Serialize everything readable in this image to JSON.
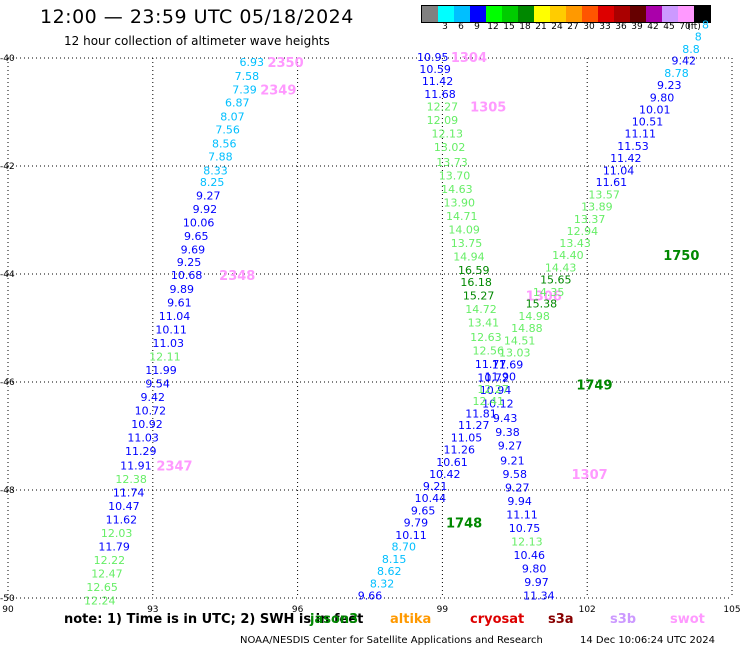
{
  "header": {
    "title": "12:00 — 23:59 UTC 05/18/2024",
    "subtitle": "12 hour collection of altimeter wave heights"
  },
  "colorbar": {
    "unit": "(ft)",
    "bins": [
      {
        "label": "",
        "color": "#808080"
      },
      {
        "label": "3",
        "color": "#00ffff"
      },
      {
        "label": "6",
        "color": "#00bfff"
      },
      {
        "label": "9",
        "color": "#0000ff"
      },
      {
        "label": "12",
        "color": "#00ff00"
      },
      {
        "label": "15",
        "color": "#00cc00"
      },
      {
        "label": "18",
        "color": "#008800"
      },
      {
        "label": "21",
        "color": "#ffff00"
      },
      {
        "label": "24",
        "color": "#ffcc00"
      },
      {
        "label": "27",
        "color": "#ff9900"
      },
      {
        "label": "30",
        "color": "#ff5500"
      },
      {
        "label": "33",
        "color": "#dd0000"
      },
      {
        "label": "36",
        "color": "#aa0000"
      },
      {
        "label": "39",
        "color": "#660000"
      },
      {
        "label": "42",
        "color": "#aa00aa"
      },
      {
        "label": "45",
        "color": "#cc99ff"
      },
      {
        "label": "70",
        "color": "#ff99ff"
      },
      {
        "label": "",
        "color": "#000000"
      }
    ]
  },
  "axes": {
    "lon_ticks": [
      "90",
      "93",
      "96",
      "99",
      "102",
      "105"
    ],
    "lat_ticks": [
      "-40",
      "-42",
      "-44",
      "-46",
      "-48",
      "-50"
    ]
  },
  "tracks": [
    {
      "id": "2347-2350",
      "pass_labels": [
        {
          "text": "2350",
          "lat": -40.07,
          "lon": 95.75
        },
        {
          "text": "2349",
          "lat": -40.58,
          "lon": 95.6
        },
        {
          "text": "2348",
          "lat": -44.02,
          "lon": 94.75
        },
        {
          "text": "2347",
          "lat": -47.55,
          "lon": 93.45
        }
      ],
      "points": [
        {
          "v": "6.93",
          "c": "#00bfff",
          "lat": -40.07,
          "lon": 95.05
        },
        {
          "v": "7.58",
          "c": "#00bfff",
          "lat": -40.33,
          "lon": 94.95
        },
        {
          "v": "7.39",
          "c": "#00bfff",
          "lat": -40.58,
          "lon": 94.9
        },
        {
          "v": "6.87",
          "c": "#00bfff",
          "lat": -40.82,
          "lon": 94.75
        },
        {
          "v": "8.07",
          "c": "#00bfff",
          "lat": -41.08,
          "lon": 94.65
        },
        {
          "v": "7.56",
          "c": "#00bfff",
          "lat": -41.32,
          "lon": 94.55
        },
        {
          "v": "8.56",
          "c": "#00bfff",
          "lat": -41.58,
          "lon": 94.48
        },
        {
          "v": "7.88",
          "c": "#00bfff",
          "lat": -41.82,
          "lon": 94.4
        },
        {
          "v": "8.33",
          "c": "#00bfff",
          "lat": -42.08,
          "lon": 94.3
        },
        {
          "v": "8.25",
          "c": "#00bfff",
          "lat": -42.3,
          "lon": 94.23
        },
        {
          "v": "9.27",
          "c": "#0000ff",
          "lat": -42.55,
          "lon": 94.15
        },
        {
          "v": "9.92",
          "c": "#0000ff",
          "lat": -42.8,
          "lon": 94.08
        },
        {
          "v": "10.06",
          "c": "#0000ff",
          "lat": -43.05,
          "lon": 93.95
        },
        {
          "v": "9.65",
          "c": "#0000ff",
          "lat": -43.3,
          "lon": 93.9
        },
        {
          "v": "9.69",
          "c": "#0000ff",
          "lat": -43.55,
          "lon": 93.83
        },
        {
          "v": "9.25",
          "c": "#0000ff",
          "lat": -43.78,
          "lon": 93.75
        },
        {
          "v": "10.68",
          "c": "#0000ff",
          "lat": -44.02,
          "lon": 93.7
        },
        {
          "v": "9.89",
          "c": "#0000ff",
          "lat": -44.28,
          "lon": 93.6
        },
        {
          "v": "9.61",
          "c": "#0000ff",
          "lat": -44.53,
          "lon": 93.55
        },
        {
          "v": "11.04",
          "c": "#0000ff",
          "lat": -44.78,
          "lon": 93.45
        },
        {
          "v": "10.11",
          "c": "#0000ff",
          "lat": -45.03,
          "lon": 93.38
        },
        {
          "v": "11.03",
          "c": "#0000ff",
          "lat": -45.28,
          "lon": 93.32
        },
        {
          "v": "12.11",
          "c": "#66ee66",
          "lat": -45.53,
          "lon": 93.25
        },
        {
          "v": "11.99",
          "c": "#0000ff",
          "lat": -45.78,
          "lon": 93.17
        },
        {
          "v": "9.54",
          "c": "#0000ff",
          "lat": -46.03,
          "lon": 93.1
        },
        {
          "v": "9.42",
          "c": "#0000ff",
          "lat": -46.28,
          "lon": 93.0
        },
        {
          "v": "10.72",
          "c": "#0000ff",
          "lat": -46.53,
          "lon": 92.95
        },
        {
          "v": "10.92",
          "c": "#0000ff",
          "lat": -46.78,
          "lon": 92.88
        },
        {
          "v": "11.03",
          "c": "#0000ff",
          "lat": -47.03,
          "lon": 92.8
        },
        {
          "v": "11.29",
          "c": "#0000ff",
          "lat": -47.28,
          "lon": 92.75
        },
        {
          "v": "11.91",
          "c": "#0000ff",
          "lat": -47.55,
          "lon": 92.65
        },
        {
          "v": "12.38",
          "c": "#66ee66",
          "lat": -47.8,
          "lon": 92.55
        },
        {
          "v": "11.74",
          "c": "#0000ff",
          "lat": -48.05,
          "lon": 92.5
        },
        {
          "v": "10.47",
          "c": "#0000ff",
          "lat": -48.3,
          "lon": 92.4
        },
        {
          "v": "11.62",
          "c": "#0000ff",
          "lat": -48.55,
          "lon": 92.35
        },
        {
          "v": "12.03",
          "c": "#66ee66",
          "lat": -48.8,
          "lon": 92.25
        },
        {
          "v": "11.79",
          "c": "#0000ff",
          "lat": -49.05,
          "lon": 92.2
        },
        {
          "v": "12.22",
          "c": "#66ee66",
          "lat": -49.3,
          "lon": 92.1
        },
        {
          "v": "12.47",
          "c": "#66ee66",
          "lat": -49.55,
          "lon": 92.05
        },
        {
          "v": "12.65",
          "c": "#66ee66",
          "lat": -49.8,
          "lon": 91.95
        },
        {
          "v": "12.24",
          "c": "#66ee66",
          "lat": -50.05,
          "lon": 91.9
        }
      ]
    },
    {
      "id": "1304-1307",
      "pass_labels": [
        {
          "text": "1304",
          "lat": -39.98,
          "lon": 99.55
        },
        {
          "text": "1305",
          "lat": -40.9,
          "lon": 99.95
        },
        {
          "text": "1306",
          "lat": -44.4,
          "lon": 101.1
        },
        {
          "text": "1307",
          "lat": -47.7,
          "lon": 102.05
        }
      ],
      "points": [
        {
          "v": "10.95",
          "c": "#0000ff",
          "lat": -39.98,
          "lon": 98.8
        },
        {
          "v": "10.59",
          "c": "#0000ff",
          "lat": -40.2,
          "lon": 98.85
        },
        {
          "v": "11.42",
          "c": "#0000ff",
          "lat": -40.43,
          "lon": 98.9
        },
        {
          "v": "11.68",
          "c": "#0000ff",
          "lat": -40.67,
          "lon": 98.95
        },
        {
          "v": "12.27",
          "c": "#66ee66",
          "lat": -40.9,
          "lon": 99.0
        },
        {
          "v": "12.09",
          "c": "#66ee66",
          "lat": -41.15,
          "lon": 99.0
        },
        {
          "v": "12.13",
          "c": "#66ee66",
          "lat": -41.4,
          "lon": 99.1
        },
        {
          "v": "13.02",
          "c": "#66ee66",
          "lat": -41.65,
          "lon": 99.15
        },
        {
          "v": "13.73",
          "c": "#66ee66",
          "lat": -41.93,
          "lon": 99.2
        },
        {
          "v": "13.70",
          "c": "#66ee66",
          "lat": -42.18,
          "lon": 99.25
        },
        {
          "v": "14.63",
          "c": "#66ee66",
          "lat": -42.43,
          "lon": 99.3
        },
        {
          "v": "13.90",
          "c": "#66ee66",
          "lat": -42.68,
          "lon": 99.35
        },
        {
          "v": "14.71",
          "c": "#66ee66",
          "lat": -42.93,
          "lon": 99.4
        },
        {
          "v": "14.09",
          "c": "#66ee66",
          "lat": -43.18,
          "lon": 99.45
        },
        {
          "v": "13.75",
          "c": "#66ee66",
          "lat": -43.43,
          "lon": 99.5
        },
        {
          "v": "14.94",
          "c": "#66ee66",
          "lat": -43.68,
          "lon": 99.55
        },
        {
          "v": "16.59",
          "c": "#008800",
          "lat": -43.93,
          "lon": 99.65
        },
        {
          "v": "16.18",
          "c": "#008800",
          "lat": -44.15,
          "lon": 99.7
        },
        {
          "v": "15.27",
          "c": "#008800",
          "lat": -44.4,
          "lon": 99.75
        },
        {
          "v": "14.72",
          "c": "#66ee66",
          "lat": -44.65,
          "lon": 99.8
        },
        {
          "v": "13.41",
          "c": "#66ee66",
          "lat": -44.9,
          "lon": 99.85
        },
        {
          "v": "12.63",
          "c": "#66ee66",
          "lat": -45.17,
          "lon": 99.9
        },
        {
          "v": "12.56",
          "c": "#66ee66",
          "lat": -45.42,
          "lon": 99.95
        },
        {
          "v": "11.77",
          "c": "#0000ff",
          "lat": -45.67,
          "lon": 100.0
        },
        {
          "v": "10.72",
          "c": "#0000ff",
          "lat": -45.92,
          "lon": 100.05
        },
        {
          "v": "10.94",
          "c": "#0000ff",
          "lat": -46.15,
          "lon": 100.1
        },
        {
          "v": "10.12",
          "c": "#0000ff",
          "lat": -46.4,
          "lon": 100.15
        },
        {
          "v": "9.43",
          "c": "#0000ff",
          "lat": -46.67,
          "lon": 100.3
        },
        {
          "v": "9.38",
          "c": "#0000ff",
          "lat": -46.93,
          "lon": 100.35
        },
        {
          "v": "9.27",
          "c": "#0000ff",
          "lat": -47.18,
          "lon": 100.4
        },
        {
          "v": "9.21",
          "c": "#0000ff",
          "lat": -47.45,
          "lon": 100.45
        },
        {
          "v": "9.58",
          "c": "#0000ff",
          "lat": -47.7,
          "lon": 100.5
        },
        {
          "v": "9.27",
          "c": "#0000ff",
          "lat": -47.95,
          "lon": 100.55
        },
        {
          "v": "9.94",
          "c": "#0000ff",
          "lat": -48.2,
          "lon": 100.6
        },
        {
          "v": "11.11",
          "c": "#0000ff",
          "lat": -48.45,
          "lon": 100.65
        },
        {
          "v": "10.75",
          "c": "#0000ff",
          "lat": -48.7,
          "lon": 100.7
        },
        {
          "v": "12.13",
          "c": "#66ee66",
          "lat": -48.95,
          "lon": 100.75
        },
        {
          "v": "10.46",
          "c": "#0000ff",
          "lat": -49.2,
          "lon": 100.8
        },
        {
          "v": "9.80",
          "c": "#0000ff",
          "lat": -49.45,
          "lon": 100.9
        },
        {
          "v": "9.97",
          "c": "#0000ff",
          "lat": -49.7,
          "lon": 100.95
        },
        {
          "v": "11.34",
          "c": "#0000ff",
          "lat": -49.95,
          "lon": 101.0
        }
      ]
    },
    {
      "id": "1748-1750",
      "pass_labels": [
        {
          "text": "1750",
          "lat": -43.65,
          "lon": 103.95
        },
        {
          "text": "1749",
          "lat": -46.05,
          "lon": 102.15
        },
        {
          "text": "1748",
          "lat": -48.6,
          "lon": 99.45
        }
      ],
      "points": [
        {
          "v": "9.66",
          "c": "#0000ff",
          "lat": -49.95,
          "lon": 97.5
        },
        {
          "v": "8.32",
          "c": "#00bfff",
          "lat": -49.73,
          "lon": 97.75
        },
        {
          "v": "8.62",
          "c": "#00bfff",
          "lat": -49.5,
          "lon": 97.9
        },
        {
          "v": "8.15",
          "c": "#00bfff",
          "lat": -49.28,
          "lon": 98.0
        },
        {
          "v": "8.70",
          "c": "#00bfff",
          "lat": -49.05,
          "lon": 98.2
        },
        {
          "v": "10.11",
          "c": "#0000ff",
          "lat": -48.83,
          "lon": 98.35
        },
        {
          "v": "9.79",
          "c": "#0000ff",
          "lat": -48.6,
          "lon": 98.45
        },
        {
          "v": "9.65",
          "c": "#0000ff",
          "lat": -48.38,
          "lon": 98.6
        },
        {
          "v": "10.44",
          "c": "#0000ff",
          "lat": -48.15,
          "lon": 98.75
        },
        {
          "v": "9.21",
          "c": "#0000ff",
          "lat": -47.93,
          "lon": 98.85
        },
        {
          "v": "10.42",
          "c": "#0000ff",
          "lat": -47.7,
          "lon": 99.05
        },
        {
          "v": "10.61",
          "c": "#0000ff",
          "lat": -47.48,
          "lon": 99.2
        },
        {
          "v": "11.26",
          "c": "#0000ff",
          "lat": -47.25,
          "lon": 99.35
        },
        {
          "v": "11.05",
          "c": "#0000ff",
          "lat": -47.03,
          "lon": 99.5
        },
        {
          "v": "11.27",
          "c": "#0000ff",
          "lat": -46.8,
          "lon": 99.65
        },
        {
          "v": "11.81",
          "c": "#0000ff",
          "lat": -46.58,
          "lon": 99.8
        },
        {
          "v": "12.41",
          "c": "#66ee66",
          "lat": -46.35,
          "lon": 99.95
        },
        {
          "v": "12.27",
          "c": "#66ee66",
          "lat": -46.13,
          "lon": 100.05
        },
        {
          "v": "11.90",
          "c": "#0000ff",
          "lat": -45.9,
          "lon": 100.2
        },
        {
          "v": "11.69",
          "c": "#0000ff",
          "lat": -45.68,
          "lon": 100.35
        },
        {
          "v": "13.03",
          "c": "#66ee66",
          "lat": -45.45,
          "lon": 100.5
        },
        {
          "v": "14.51",
          "c": "#66ee66",
          "lat": -45.23,
          "lon": 100.6
        },
        {
          "v": "14.88",
          "c": "#66ee66",
          "lat": -45.0,
          "lon": 100.75
        },
        {
          "v": "14.98",
          "c": "#66ee66",
          "lat": -44.78,
          "lon": 100.9
        },
        {
          "v": "15.38",
          "c": "#008800",
          "lat": -44.55,
          "lon": 101.05
        },
        {
          "v": "14.35",
          "c": "#66ee66",
          "lat": -44.33,
          "lon": 101.2
        },
        {
          "v": "15.65",
          "c": "#008800",
          "lat": -44.1,
          "lon": 101.35
        },
        {
          "v": "14.43",
          "c": "#66ee66",
          "lat": -43.88,
          "lon": 101.45
        },
        {
          "v": "14.40",
          "c": "#66ee66",
          "lat": -43.65,
          "lon": 101.6
        },
        {
          "v": "13.43",
          "c": "#66ee66",
          "lat": -43.43,
          "lon": 101.75
        },
        {
          "v": "12.94",
          "c": "#66ee66",
          "lat": -43.2,
          "lon": 101.9
        },
        {
          "v": "13.37",
          "c": "#66ee66",
          "lat": -42.98,
          "lon": 102.05
        },
        {
          "v": "13.89",
          "c": "#66ee66",
          "lat": -42.75,
          "lon": 102.2
        },
        {
          "v": "13.57",
          "c": "#66ee66",
          "lat": -42.53,
          "lon": 102.35
        },
        {
          "v": "11.61",
          "c": "#0000ff",
          "lat": -42.3,
          "lon": 102.5
        },
        {
          "v": "11.04",
          "c": "#0000ff",
          "lat": -42.08,
          "lon": 102.65
        },
        {
          "v": "11.42",
          "c": "#0000ff",
          "lat": -41.85,
          "lon": 102.8
        },
        {
          "v": "11.53",
          "c": "#0000ff",
          "lat": -41.63,
          "lon": 102.95
        },
        {
          "v": "11.11",
          "c": "#0000ff",
          "lat": -41.4,
          "lon": 103.1
        },
        {
          "v": "10.51",
          "c": "#0000ff",
          "lat": -41.18,
          "lon": 103.25
        },
        {
          "v": "10.01",
          "c": "#0000ff",
          "lat": -40.95,
          "lon": 103.4
        },
        {
          "v": "9.80",
          "c": "#0000ff",
          "lat": -40.73,
          "lon": 103.55
        },
        {
          "v": "9.23",
          "c": "#0000ff",
          "lat": -40.5,
          "lon": 103.7
        },
        {
          "v": "8.78",
          "c": "#00bfff",
          "lat": -40.28,
          "lon": 103.85
        },
        {
          "v": "9.42",
          "c": "#0000ff",
          "lat": -40.05,
          "lon": 104.0
        },
        {
          "v": "8.8",
          "c": "#00bfff",
          "lat": -39.83,
          "lon": 104.15
        },
        {
          "v": "8",
          "c": "#00bfff",
          "lat": -39.6,
          "lon": 104.3
        },
        {
          "v": "8",
          "c": "#00bfff",
          "lat": -39.38,
          "lon": 104.45
        }
      ]
    }
  ],
  "footer": {
    "note": "note: 1) Time is in UTC; 2) SWH is in feet",
    "satellites": [
      {
        "name": "jason3",
        "color": "#008800"
      },
      {
        "name": "altika",
        "color": "#ff9900"
      },
      {
        "name": "cryosat",
        "color": "#dd0000"
      },
      {
        "name": "s3a",
        "color": "#880000"
      },
      {
        "name": "s3b",
        "color": "#cc99ff"
      },
      {
        "name": "swot",
        "color": "#ff99ff"
      }
    ],
    "credit": "NOAA/NESDIS Center for Satellite Applications and Research",
    "timestamp": "14 Dec 10:06:24 UTC 2024"
  }
}
